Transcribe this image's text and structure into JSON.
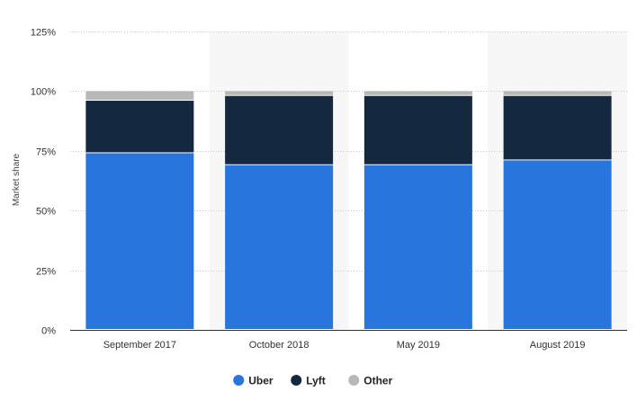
{
  "chart_data": {
    "type": "bar",
    "stacked": true,
    "categories": [
      "September 2017",
      "October 2018",
      "May 2019",
      "August 2019"
    ],
    "series": [
      {
        "name": "Uber",
        "color": "#2876dd",
        "values": [
          74,
          69,
          69,
          71
        ]
      },
      {
        "name": "Lyft",
        "color": "#14283f",
        "values": [
          22,
          29,
          29,
          27
        ]
      },
      {
        "name": "Other",
        "color": "#b8b8b8",
        "values": [
          4,
          2,
          2,
          2
        ]
      }
    ],
    "ylabel": "Market share",
    "ylim": [
      0,
      125
    ],
    "yticks": [
      "0%",
      "25%",
      "50%",
      "75%",
      "100%",
      "125%"
    ],
    "ytick_values": [
      0,
      25,
      50,
      75,
      100,
      125
    ],
    "grid": true,
    "legend_position": "bottom-center"
  }
}
